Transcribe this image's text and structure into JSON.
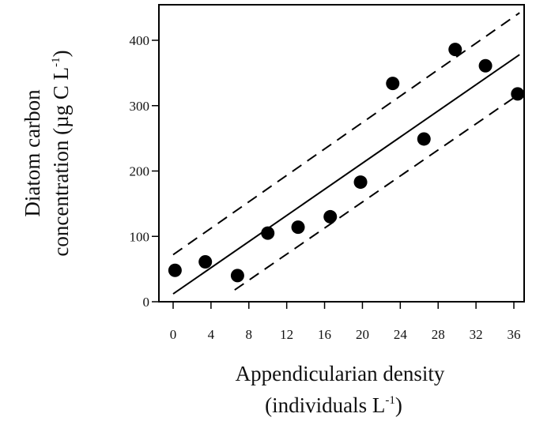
{
  "chart_data": {
    "type": "scatter",
    "xlabel": {
      "line1": "Appendicularian density",
      "line2_prefix": "(individuals L",
      "line2_sup": "-1",
      "line2_suffix": ")"
    },
    "ylabel": {
      "line1": "Diatom carbon",
      "line2_prefix": "concentration (µg C L",
      "line2_sup": "-1",
      "line2_suffix": ")"
    },
    "xlim": [
      -2,
      38
    ],
    "ylim": [
      0,
      440
    ],
    "xticks": [
      "0",
      "4",
      "8",
      "12",
      "16",
      "20",
      "24",
      "28",
      "32",
      "36"
    ],
    "yticks": [
      "0",
      "100",
      "200",
      "300",
      "400"
    ],
    "series": [
      {
        "values": [
          {
            "x": 0.2,
            "y": 48
          },
          {
            "x": 3.4,
            "y": 61
          },
          {
            "x": 6.8,
            "y": 40
          },
          {
            "x": 10.0,
            "y": 105
          },
          {
            "x": 13.2,
            "y": 114
          },
          {
            "x": 16.6,
            "y": 130
          },
          {
            "x": 19.8,
            "y": 183
          },
          {
            "x": 23.2,
            "y": 334
          },
          {
            "x": 26.5,
            "y": 249
          },
          {
            "x": 29.8,
            "y": 386
          },
          {
            "x": 33.0,
            "y": 361
          },
          {
            "x": 36.4,
            "y": 318
          }
        ]
      }
    ],
    "regression_line": {
      "x": [
        0,
        36.6
      ],
      "y": [
        12,
        378
      ]
    },
    "confidence_upper": {
      "x": [
        0,
        36.6
      ],
      "y": [
        72,
        442
      ]
    },
    "confidence_lower": {
      "x": [
        6.5,
        36.6
      ],
      "y": [
        18,
        318
      ]
    },
    "grid": false,
    "legend": "none"
  }
}
